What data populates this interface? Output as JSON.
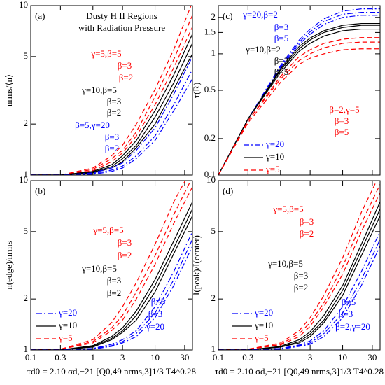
{
  "chart_data": [
    {
      "type": "line",
      "panel_label": "(a)",
      "title": "Dusty H II Regions",
      "subtitle": "with Radiation Pressure",
      "ylabel": "nrms/⟨n⟩",
      "xscale": "log",
      "yscale": "log",
      "x": [
        0.1,
        0.3,
        1,
        2,
        3,
        5,
        10,
        20,
        40
      ],
      "xlim": [
        0.1,
        40
      ],
      "xticks": [
        0.1,
        0.3,
        1,
        3,
        10,
        30
      ],
      "ylim": [
        1,
        10
      ],
      "yticks": [
        1,
        2,
        5,
        10
      ],
      "series": [
        {
          "color": "#ff0000",
          "dash": "dashed",
          "values": [
            1,
            1,
            1.1,
            1.3,
            1.5,
            2.0,
            3.2,
            5.5,
            10.5
          ]
        },
        {
          "color": "#ff0000",
          "dash": "dashed",
          "values": [
            1,
            1,
            1.08,
            1.25,
            1.4,
            1.8,
            2.9,
            4.8,
            8.8
          ]
        },
        {
          "color": "#ff0000",
          "dash": "dashed",
          "values": [
            1,
            1,
            1.06,
            1.2,
            1.35,
            1.7,
            2.6,
            4.3,
            7.5
          ]
        },
        {
          "color": "#000000",
          "dash": "solid",
          "values": [
            1,
            1,
            1.05,
            1.15,
            1.3,
            1.6,
            2.4,
            3.9,
            6.8
          ]
        },
        {
          "color": "#000000",
          "dash": "solid",
          "values": [
            1,
            1,
            1.04,
            1.12,
            1.25,
            1.5,
            2.2,
            3.5,
            6
          ]
        },
        {
          "color": "#000000",
          "dash": "solid",
          "values": [
            1,
            1,
            1.03,
            1.1,
            1.2,
            1.45,
            2.0,
            3.2,
            5.2
          ]
        },
        {
          "color": "#0000ff",
          "dash": "dashdot",
          "values": [
            1,
            1,
            1.03,
            1.1,
            1.18,
            1.4,
            1.9,
            3.0,
            5.0
          ]
        },
        {
          "color": "#0000ff",
          "dash": "dashdot",
          "values": [
            1,
            1,
            1.02,
            1.07,
            1.13,
            1.3,
            1.7,
            2.6,
            4.2
          ]
        },
        {
          "color": "#0000ff",
          "dash": "dashdot",
          "values": [
            1,
            1,
            1.01,
            1.05,
            1.1,
            1.25,
            1.6,
            2.4,
            3.7
          ]
        }
      ],
      "annotations": [
        {
          "text": "γ=5,β=5",
          "color": "#ff0000"
        },
        {
          "text": "β=3",
          "color": "#ff0000"
        },
        {
          "text": "β=2",
          "color": "#ff0000"
        },
        {
          "text": "γ=10,β=5",
          "color": "#000000"
        },
        {
          "text": "β=3",
          "color": "#000000"
        },
        {
          "text": "β=2",
          "color": "#000000"
        },
        {
          "text": "β=5,γ=20",
          "color": "#0000ff"
        },
        {
          "text": "β=3",
          "color": "#0000ff"
        },
        {
          "text": "β=2",
          "color": "#0000ff"
        }
      ]
    },
    {
      "type": "line",
      "panel_label": "(b)",
      "ylabel": "n(edge)/nrms",
      "xlabel": "τd0 = 2.10 σd,−21 [Q0,49 nrms,3]1/3 T4^0.28",
      "xscale": "log",
      "yscale": "log",
      "x": [
        0.1,
        0.3,
        1,
        2,
        3,
        5,
        10,
        20,
        40
      ],
      "xlim": [
        0.1,
        40
      ],
      "xticks": [
        0.1,
        0.3,
        1,
        3,
        10,
        30
      ],
      "ylim": [
        1,
        10
      ],
      "yticks": [
        1,
        2,
        5,
        10
      ],
      "series": [
        {
          "color": "#ff0000",
          "dash": "dashed",
          "values": [
            1,
            1.01,
            1.15,
            1.45,
            1.8,
            2.5,
            4.2,
            7.5,
            12
          ]
        },
        {
          "color": "#ff0000",
          "dash": "dashed",
          "values": [
            1,
            1.01,
            1.12,
            1.35,
            1.6,
            2.2,
            3.6,
            6.3,
            10.5
          ]
        },
        {
          "color": "#ff0000",
          "dash": "dashed",
          "values": [
            1,
            1.01,
            1.1,
            1.3,
            1.5,
            2.0,
            3.2,
            5.6,
            9.2
          ]
        },
        {
          "color": "#000000",
          "dash": "solid",
          "values": [
            1,
            1,
            1.06,
            1.2,
            1.35,
            1.7,
            2.6,
            4.4,
            7.5
          ]
        },
        {
          "color": "#000000",
          "dash": "solid",
          "values": [
            1,
            1,
            1.05,
            1.17,
            1.3,
            1.6,
            2.4,
            4.0,
            6.8
          ]
        },
        {
          "color": "#000000",
          "dash": "solid",
          "values": [
            1,
            1,
            1.04,
            1.15,
            1.27,
            1.5,
            2.2,
            3.7,
            6.2
          ]
        },
        {
          "color": "#0000ff",
          "dash": "dashdot",
          "values": [
            1,
            1,
            1.02,
            1.08,
            1.15,
            1.3,
            1.8,
            2.9,
            5.0
          ]
        },
        {
          "color": "#0000ff",
          "dash": "dashdot",
          "values": [
            1,
            1,
            1.02,
            1.06,
            1.12,
            1.25,
            1.65,
            2.6,
            4.5
          ]
        },
        {
          "color": "#0000ff",
          "dash": "dashdot",
          "values": [
            1,
            1,
            1.01,
            1.05,
            1.1,
            1.2,
            1.55,
            2.4,
            4.1
          ]
        }
      ],
      "annotations": [
        {
          "text": "γ=5,β=5",
          "color": "#ff0000"
        },
        {
          "text": "β=3",
          "color": "#ff0000"
        },
        {
          "text": "β=2",
          "color": "#ff0000"
        },
        {
          "text": "γ=10,β=5",
          "color": "#000000"
        },
        {
          "text": "β=3",
          "color": "#000000"
        },
        {
          "text": "β=2",
          "color": "#000000"
        },
        {
          "text": "β=5",
          "color": "#0000ff"
        },
        {
          "text": "β=3",
          "color": "#0000ff"
        },
        {
          "text": "γ=20",
          "color": "#0000ff"
        }
      ],
      "legend": [
        {
          "label": "γ=20",
          "color": "#0000ff",
          "dash": "dashdot"
        },
        {
          "label": "γ=10",
          "color": "#000000",
          "dash": "solid"
        },
        {
          "label": "γ=5",
          "color": "#ff0000",
          "dash": "dashed"
        }
      ]
    },
    {
      "type": "line",
      "panel_label": "(c)",
      "ylabel": "τ(R)",
      "xscale": "log",
      "yscale": "log",
      "x": [
        0.1,
        0.3,
        1,
        2,
        3,
        5,
        10,
        20,
        40
      ],
      "xlim": [
        0.1,
        40
      ],
      "xticks": [
        0.1,
        0.3,
        1,
        3,
        10,
        30
      ],
      "ylim": [
        0.1,
        2.5
      ],
      "yticks": [
        0.1,
        0.2,
        0.5,
        1,
        1.5,
        2
      ],
      "series": [
        {
          "color": "#0000ff",
          "dash": "dashdot",
          "values": [
            0.1,
            0.29,
            0.8,
            1.3,
            1.6,
            1.95,
            2.25,
            2.35,
            2.35
          ]
        },
        {
          "color": "#0000ff",
          "dash": "dashdot",
          "values": [
            0.1,
            0.29,
            0.78,
            1.25,
            1.52,
            1.85,
            2.12,
            2.2,
            2.2
          ]
        },
        {
          "color": "#0000ff",
          "dash": "dashdot",
          "values": [
            0.1,
            0.29,
            0.76,
            1.2,
            1.45,
            1.75,
            2.0,
            2.08,
            2.08
          ]
        },
        {
          "color": "#000000",
          "dash": "solid",
          "values": [
            0.1,
            0.29,
            0.75,
            1.15,
            1.35,
            1.55,
            1.72,
            1.78,
            1.78
          ]
        },
        {
          "color": "#000000",
          "dash": "solid",
          "values": [
            0.1,
            0.29,
            0.73,
            1.1,
            1.3,
            1.5,
            1.65,
            1.72,
            1.72
          ]
        },
        {
          "color": "#000000",
          "dash": "solid",
          "values": [
            0.1,
            0.29,
            0.7,
            1.05,
            1.22,
            1.4,
            1.55,
            1.6,
            1.6
          ]
        },
        {
          "color": "#ff0000",
          "dash": "dashed",
          "values": [
            0.1,
            0.28,
            0.65,
            0.95,
            1.08,
            1.22,
            1.32,
            1.36,
            1.36
          ]
        },
        {
          "color": "#ff0000",
          "dash": "dashed",
          "values": [
            0.1,
            0.28,
            0.62,
            0.88,
            1.0,
            1.12,
            1.22,
            1.25,
            1.25
          ]
        },
        {
          "color": "#ff0000",
          "dash": "dashed",
          "values": [
            0.1,
            0.27,
            0.58,
            0.82,
            0.92,
            1.0,
            1.08,
            1.1,
            1.1
          ]
        }
      ],
      "annotations": [
        {
          "text": "γ=20,β=2",
          "color": "#0000ff"
        },
        {
          "text": "β=3",
          "color": "#0000ff"
        },
        {
          "text": "β=5",
          "color": "#0000ff"
        },
        {
          "text": "γ=10,β=2",
          "color": "#000000"
        },
        {
          "text": "β=3",
          "color": "#000000"
        },
        {
          "text": "β=5",
          "color": "#000000"
        },
        {
          "text": "β=2,γ=5",
          "color": "#ff0000"
        },
        {
          "text": "β=3",
          "color": "#ff0000"
        },
        {
          "text": "β=5",
          "color": "#ff0000"
        }
      ],
      "legend": [
        {
          "label": "γ=20",
          "color": "#0000ff",
          "dash": "dashdot"
        },
        {
          "label": "γ=10",
          "color": "#000000",
          "dash": "solid"
        },
        {
          "label": "γ=5",
          "color": "#ff0000",
          "dash": "dashed"
        }
      ]
    },
    {
      "type": "line",
      "panel_label": "(d)",
      "ylabel": "I(peak)/I(center)",
      "xlabel": "τd0 = 2.10 σd,−21 [Q0,49 nrms,3]1/3 T4^0.28",
      "xscale": "log",
      "yscale": "log",
      "x": [
        0.1,
        0.3,
        1,
        2,
        3,
        5,
        10,
        20,
        40
      ],
      "xlim": [
        0.1,
        40
      ],
      "xticks": [
        0.1,
        0.3,
        1,
        3,
        10,
        30
      ],
      "ylim": [
        1,
        10
      ],
      "yticks": [
        1,
        2,
        5,
        10
      ],
      "series": [
        {
          "color": "#ff0000",
          "dash": "dashed",
          "values": [
            1,
            1.01,
            1.1,
            1.3,
            1.55,
            2.1,
            3.5,
            6.5,
            11
          ]
        },
        {
          "color": "#ff0000",
          "dash": "dashed",
          "values": [
            1,
            1.01,
            1.08,
            1.25,
            1.45,
            1.9,
            3.1,
            5.6,
            9.5
          ]
        },
        {
          "color": "#ff0000",
          "dash": "dashed",
          "values": [
            1,
            1.01,
            1.07,
            1.2,
            1.38,
            1.8,
            2.8,
            5.0,
            8.5
          ]
        },
        {
          "color": "#000000",
          "dash": "solid",
          "values": [
            1,
            1,
            1.05,
            1.15,
            1.28,
            1.6,
            2.4,
            4.2,
            7.5
          ]
        },
        {
          "color": "#000000",
          "dash": "solid",
          "values": [
            1,
            1,
            1.04,
            1.12,
            1.24,
            1.5,
            2.25,
            3.9,
            6.8
          ]
        },
        {
          "color": "#000000",
          "dash": "solid",
          "values": [
            1,
            1,
            1.04,
            1.1,
            1.2,
            1.45,
            2.1,
            3.6,
            6.2
          ]
        },
        {
          "color": "#0000ff",
          "dash": "dashdot",
          "values": [
            1,
            1,
            1.02,
            1.07,
            1.13,
            1.3,
            1.8,
            2.9,
            5.0
          ]
        },
        {
          "color": "#0000ff",
          "dash": "dashdot",
          "values": [
            1,
            1,
            1.02,
            1.06,
            1.1,
            1.25,
            1.65,
            2.6,
            4.5
          ]
        },
        {
          "color": "#0000ff",
          "dash": "dashdot",
          "values": [
            1,
            1,
            1.01,
            1.05,
            1.08,
            1.2,
            1.55,
            2.4,
            4.1
          ]
        }
      ],
      "annotations": [
        {
          "text": "γ=5,β=5",
          "color": "#ff0000"
        },
        {
          "text": "β=3",
          "color": "#ff0000"
        },
        {
          "text": "β=2",
          "color": "#ff0000"
        },
        {
          "text": "γ=10,β=5",
          "color": "#000000"
        },
        {
          "text": "β=3",
          "color": "#000000"
        },
        {
          "text": "β=2",
          "color": "#000000"
        },
        {
          "text": "β=5",
          "color": "#0000ff"
        },
        {
          "text": "β=3",
          "color": "#0000ff"
        },
        {
          "text": "β=2,γ=20",
          "color": "#0000ff"
        }
      ],
      "legend": [
        {
          "label": "γ=20",
          "color": "#0000ff",
          "dash": "dashdot"
        },
        {
          "label": "γ=10",
          "color": "#000000",
          "dash": "solid"
        },
        {
          "label": "γ=5",
          "color": "#ff0000",
          "dash": "dashed"
        }
      ]
    }
  ]
}
